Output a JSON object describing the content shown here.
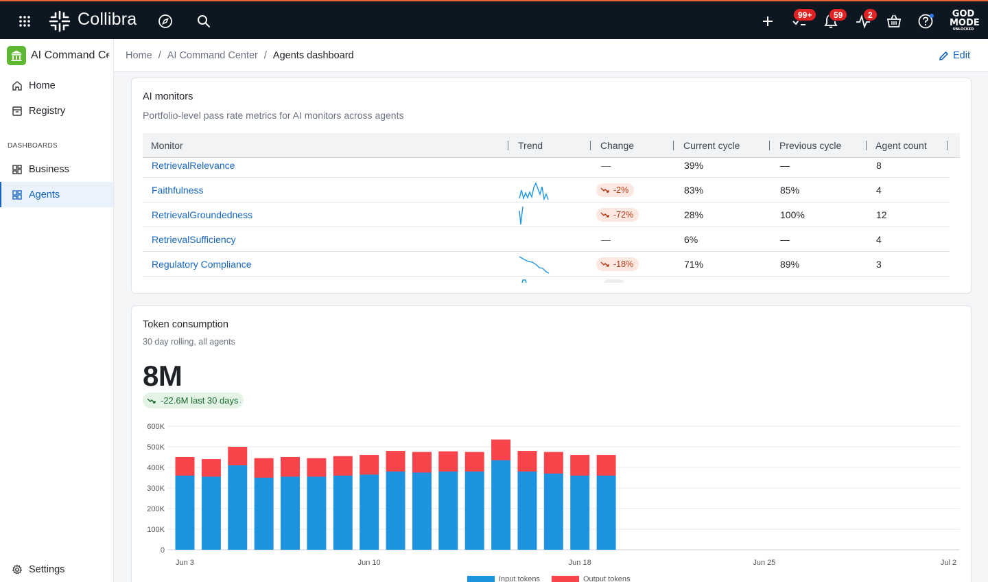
{
  "topbar": {
    "brand": "Collibra",
    "badges": {
      "tasks": "99+",
      "notifications": "59",
      "activity": "2"
    },
    "godmode_line1": "GOD",
    "godmode_line2": "MODE",
    "godmode_line3": "UNLOCKED"
  },
  "sidebar": {
    "title": "AI Command Center",
    "items": [
      {
        "label": "Home"
      },
      {
        "label": "Registry"
      },
      {
        "label": "Business"
      },
      {
        "label": "Agents"
      },
      {
        "label": "Settings"
      }
    ],
    "section_label": "DASHBOARDS"
  },
  "breadcrumb": {
    "items": [
      "Home",
      "AI Command Center",
      "Agents dashboard"
    ],
    "edit_label": "Edit"
  },
  "monitors": {
    "title": "AI monitors",
    "subtitle": "Portfolio-level pass rate metrics for AI monitors across agents",
    "columns": [
      "Monitor",
      "Trend",
      "Change",
      "Current cycle",
      "Previous cycle",
      "Agent count"
    ],
    "rows": [
      {
        "monitor": "RetrievalRelevance",
        "change": "—",
        "current": "39%",
        "previous": "—",
        "agents": "8"
      },
      {
        "monitor": "Faithfulness",
        "change": "-2%",
        "current": "83%",
        "previous": "85%",
        "agents": "4"
      },
      {
        "monitor": "RetrievalGroundedness",
        "change": "-72%",
        "current": "28%",
        "previous": "100%",
        "agents": "12"
      },
      {
        "monitor": "RetrievalSufficiency",
        "change": "—",
        "current": "6%",
        "previous": "—",
        "agents": "4"
      },
      {
        "monitor": "Regulatory Compliance",
        "change": "-18%",
        "current": "71%",
        "previous": "89%",
        "agents": "3"
      }
    ]
  },
  "tokens": {
    "title": "Token consumption",
    "subtitle": "30 day rolling, all agents",
    "total": "8M",
    "delta": "-22.6M last 30 days"
  },
  "chart_data": {
    "type": "bar",
    "stacked": true,
    "x_ticks": [
      "Jun 3",
      "Jun 10",
      "Jun 18",
      "Jun 25",
      "Jul 2"
    ],
    "y_ticks": [
      "0",
      "100K",
      "200K",
      "300K",
      "400K",
      "500K",
      "600K"
    ],
    "ylim": [
      0,
      600000
    ],
    "series": [
      {
        "name": "Input tokens",
        "color": "#1e94e0",
        "values": [
          360000,
          355000,
          410000,
          350000,
          355000,
          355000,
          360000,
          365000,
          380000,
          375000,
          380000,
          380000,
          435000,
          380000,
          370000,
          360000,
          360000
        ]
      },
      {
        "name": "Output tokens",
        "color": "#f8444a",
        "values": [
          90000,
          85000,
          90000,
          95000,
          95000,
          90000,
          95000,
          95000,
          100000,
          100000,
          98000,
          95000,
          100000,
          100000,
          105000,
          100000,
          100000
        ]
      }
    ],
    "grid": true,
    "legend": "bottom-center"
  }
}
